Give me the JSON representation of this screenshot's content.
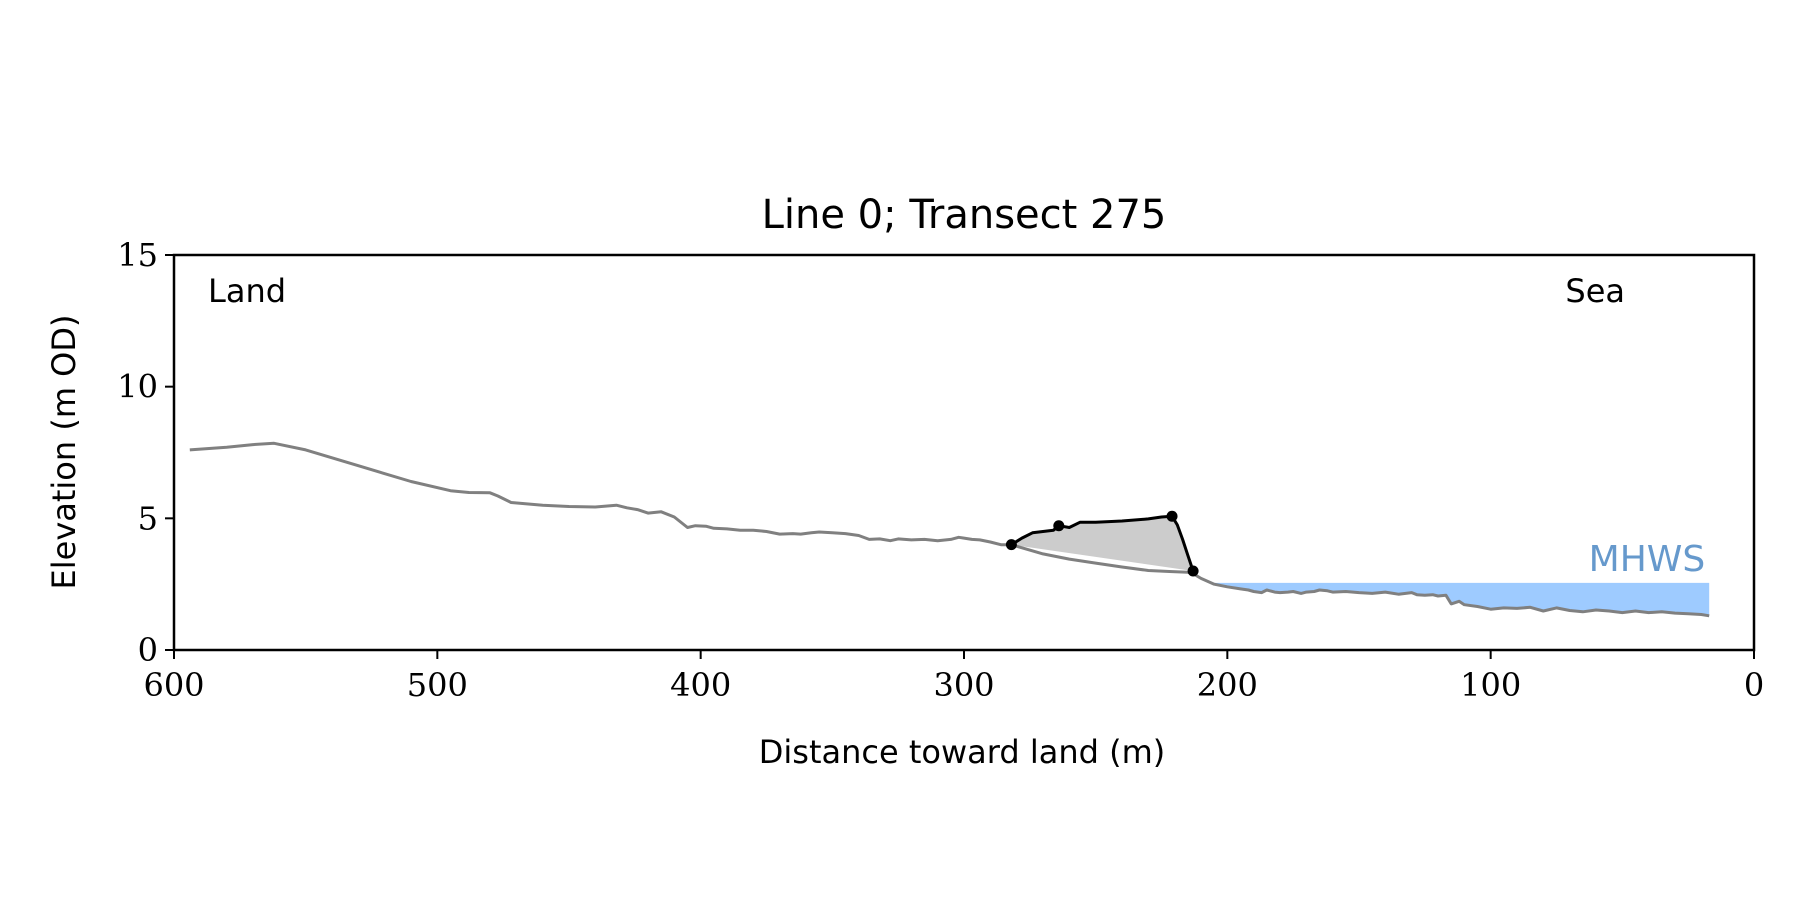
{
  "chart_data": {
    "type": "line",
    "title": "Line 0; Transect 275",
    "xlabel": "Distance toward land (m)",
    "ylabel": "Elevation (m OD)",
    "xlim": [
      600,
      0
    ],
    "ylim": [
      0,
      15
    ],
    "x_ticks": [
      600,
      500,
      400,
      300,
      200,
      100,
      0
    ],
    "y_ticks": [
      0,
      5,
      10,
      15
    ],
    "grid": false,
    "annotations": {
      "land": "Land",
      "sea": "Sea"
    },
    "mhws": {
      "label": "MHWS",
      "elevation": 2.55,
      "x_start": 207,
      "x_end": 17,
      "fill_color": "#9ecbff",
      "label_color": "#6699cc"
    },
    "profile": {
      "color": "#808080",
      "x": [
        594,
        580,
        570,
        562,
        550,
        530,
        510,
        495,
        488,
        480,
        477,
        472,
        460,
        450,
        440,
        432,
        428,
        424,
        420,
        415,
        410,
        405,
        402,
        398,
        395,
        390,
        385,
        380,
        375,
        370,
        365,
        362,
        358,
        355,
        350,
        345,
        340,
        336,
        332,
        328,
        325,
        320,
        315,
        310,
        305,
        302,
        300,
        297,
        294,
        290,
        286,
        282,
        270,
        260,
        250,
        240,
        230,
        222,
        215,
        213,
        210,
        205,
        200,
        195,
        192,
        190,
        187,
        185,
        182,
        180,
        177,
        175,
        172,
        170,
        167,
        165,
        162,
        160,
        155,
        150,
        145,
        140,
        135,
        130,
        128,
        125,
        122,
        120,
        117,
        115,
        112,
        110,
        105,
        100,
        95,
        90,
        85,
        80,
        75,
        70,
        65,
        60,
        55,
        50,
        45,
        40,
        35,
        30,
        25,
        20,
        17
      ],
      "y": [
        7.6,
        7.7,
        7.8,
        7.85,
        7.6,
        7.0,
        6.4,
        6.05,
        5.98,
        5.97,
        5.85,
        5.6,
        5.5,
        5.45,
        5.43,
        5.5,
        5.4,
        5.33,
        5.2,
        5.25,
        5.05,
        4.65,
        4.72,
        4.7,
        4.62,
        4.6,
        4.55,
        4.55,
        4.5,
        4.4,
        4.42,
        4.4,
        4.45,
        4.48,
        4.45,
        4.42,
        4.35,
        4.2,
        4.22,
        4.15,
        4.22,
        4.18,
        4.2,
        4.15,
        4.2,
        4.28,
        4.25,
        4.2,
        4.18,
        4.1,
        4.0,
        4.0,
        3.65,
        3.45,
        3.3,
        3.15,
        3.02,
        2.98,
        2.95,
        2.9,
        2.72,
        2.5,
        2.4,
        2.32,
        2.28,
        2.22,
        2.18,
        2.28,
        2.2,
        2.18,
        2.2,
        2.22,
        2.15,
        2.2,
        2.22,
        2.28,
        2.25,
        2.2,
        2.22,
        2.18,
        2.15,
        2.2,
        2.12,
        2.18,
        2.1,
        2.08,
        2.1,
        2.05,
        2.08,
        1.75,
        1.85,
        1.72,
        1.65,
        1.55,
        1.6,
        1.58,
        1.62,
        1.48,
        1.6,
        1.5,
        1.45,
        1.52,
        1.48,
        1.42,
        1.48,
        1.42,
        1.45,
        1.4,
        1.38,
        1.35,
        1.3
      ]
    },
    "dune": {
      "color": "#000000",
      "fill_color": "#cccccc",
      "x": [
        282,
        278,
        274,
        270,
        266,
        264,
        260,
        256,
        250,
        240,
        230,
        225,
        221,
        219,
        217,
        215,
        213
      ],
      "y": [
        4.0,
        4.25,
        4.45,
        4.5,
        4.55,
        4.72,
        4.65,
        4.85,
        4.85,
        4.9,
        4.98,
        5.05,
        5.08,
        4.75,
        4.2,
        3.6,
        3.0
      ],
      "points": [
        {
          "x": 282,
          "y": 4.0
        },
        {
          "x": 264,
          "y": 4.72
        },
        {
          "x": 221,
          "y": 5.08
        },
        {
          "x": 213,
          "y": 3.0
        }
      ]
    }
  }
}
